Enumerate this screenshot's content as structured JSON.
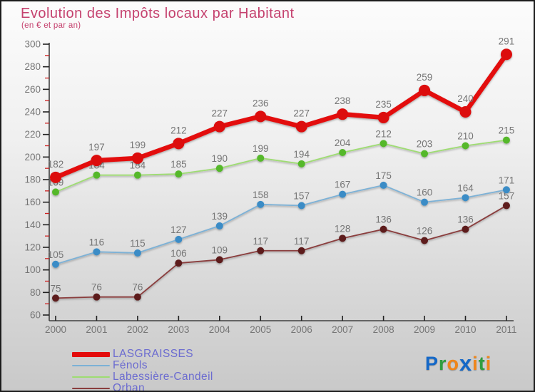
{
  "header": {
    "title": "Evolution des Impôts locaux par Habitant",
    "subtitle": "(en € et par an)"
  },
  "chart_data": {
    "type": "line",
    "x": [
      2000,
      2001,
      2002,
      2003,
      2004,
      2005,
      2006,
      2007,
      2008,
      2009,
      2010,
      2011
    ],
    "xlabel": "",
    "ylabel": "",
    "ylim": [
      60,
      300
    ],
    "ytick_step": 20,
    "ytick_minor_step": 10,
    "grid": false,
    "legend_position": "bottom-left",
    "series": [
      {
        "name": "LASGRAISSES",
        "line_color": "#e30b0b",
        "marker_color": "#dc0707",
        "values": [
          182,
          197,
          199,
          212,
          227,
          236,
          227,
          238,
          235,
          259,
          240,
          291
        ]
      },
      {
        "name": "Fénols",
        "line_color": "#7cb1d6",
        "marker_color": "#3a8cc6",
        "values": [
          105,
          116,
          115,
          127,
          139,
          158,
          157,
          167,
          175,
          160,
          164,
          171
        ]
      },
      {
        "name": "Labessière-Candeil",
        "line_color": "#9edc72",
        "marker_color": "#54b82a",
        "values": [
          169,
          184,
          184,
          185,
          190,
          199,
          194,
          204,
          212,
          203,
          210,
          215
        ]
      },
      {
        "name": "Orban",
        "line_color": "#8a3e3e",
        "marker_color": "#5d1d1d",
        "values": [
          75,
          76,
          76,
          106,
          109,
          117,
          117,
          128,
          136,
          126,
          136,
          157
        ]
      }
    ],
    "colors": {
      "title_pink": "#c5426f",
      "axis_line": "#3f3f3f",
      "major_tick": "#222222",
      "minor_tick": "#cc2222",
      "tick_label": "#757575",
      "legend_text": "#6b6bd0"
    }
  },
  "logo": {
    "name": "Proxiti",
    "letters": [
      {
        "ch": "P",
        "color": "#1468c8"
      },
      {
        "ch": "r",
        "color": "#2f9e3f"
      },
      {
        "ch": "o",
        "color": "#f08619"
      },
      {
        "ch": "x",
        "color": "#1468c8",
        "big": true
      },
      {
        "ch": "i",
        "color": "#f08619"
      },
      {
        "ch": "t",
        "color": "#2f9e3f"
      },
      {
        "ch": "i",
        "color": "#f08619"
      }
    ]
  }
}
